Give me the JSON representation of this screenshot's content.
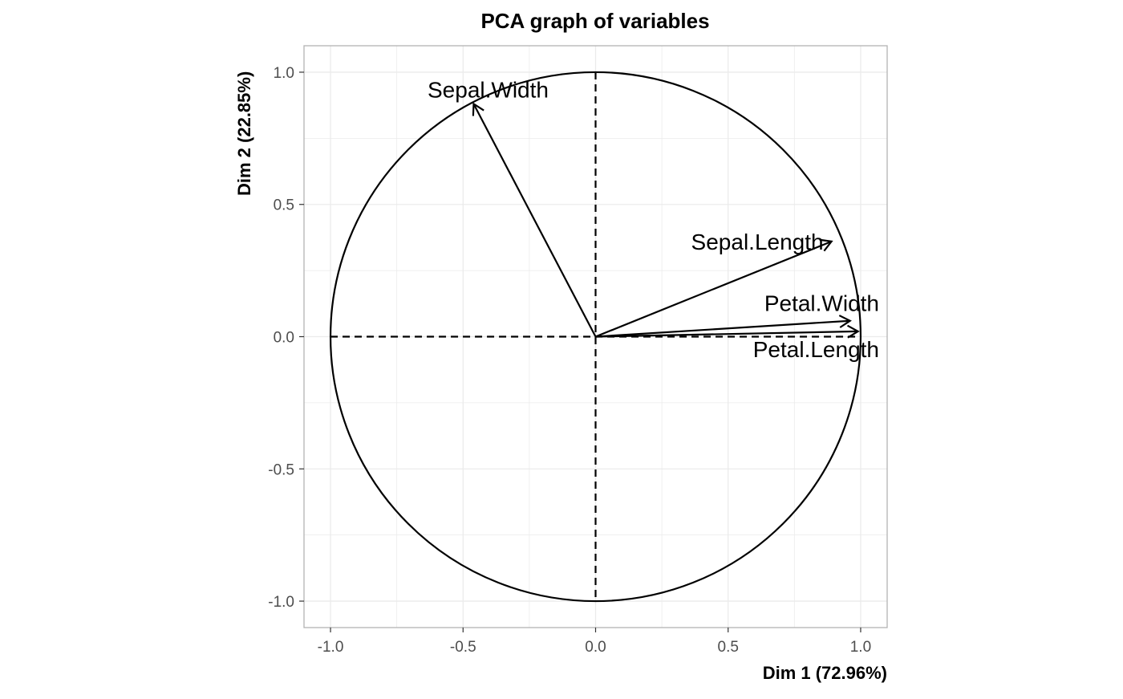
{
  "chart_data": {
    "type": "vector",
    "title": "PCA graph of variables",
    "xlabel": "Dim 1 (72.96%)",
    "ylabel": "Dim 2 (22.85%)",
    "xlim": [
      -1.1,
      1.1
    ],
    "ylim": [
      -1.1,
      1.1
    ],
    "x_ticks": [
      -1.0,
      -0.5,
      0.0,
      0.5,
      1.0
    ],
    "y_ticks": [
      -1.0,
      -0.5,
      0.0,
      0.5,
      1.0
    ],
    "x_tick_labels": [
      "-1.0",
      "-0.5",
      "0.0",
      "0.5",
      "1.0"
    ],
    "y_tick_labels": [
      "-1.0",
      "-0.5",
      "0.0",
      "0.5",
      "1.0"
    ],
    "grid": true,
    "correlation_circle_radius": 1.0,
    "variables": [
      {
        "name": "Sepal.Length",
        "x": 0.89,
        "y": 0.36
      },
      {
        "name": "Sepal.Width",
        "x": -0.46,
        "y": 0.88
      },
      {
        "name": "Petal.Length",
        "x": 0.99,
        "y": 0.02
      },
      {
        "name": "Petal.Width",
        "x": 0.96,
        "y": 0.06
      }
    ],
    "colors": {
      "axis_line": "#000000",
      "grid": "#ebebeb",
      "panel_border": "#b3b3b3",
      "tick_text": "#4d4d4d"
    }
  }
}
